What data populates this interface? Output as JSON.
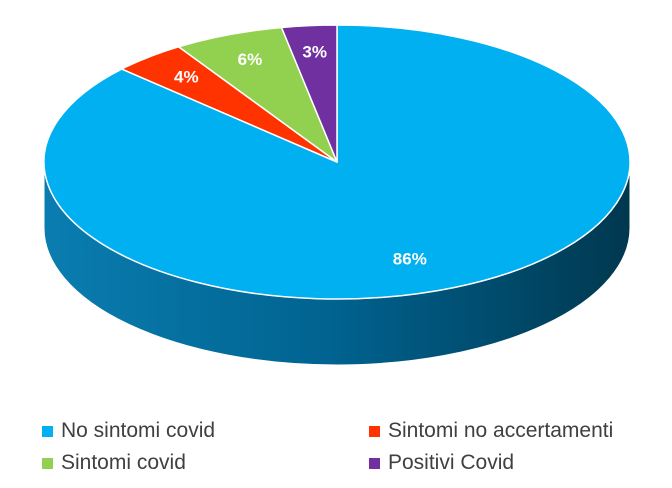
{
  "chart_data": {
    "type": "pie",
    "categories": [
      "No sintomi covid",
      "Sintomi no accertamenti",
      "Sintomi covid",
      "Positivi Covid"
    ],
    "values": [
      86,
      4,
      6,
      3
    ],
    "data_labels": [
      "86%",
      "4%",
      "6%",
      "3%"
    ],
    "colors": [
      "#00B0F0",
      "#FF3300",
      "#92D050",
      "#7030A0"
    ],
    "legend_position": "bottom",
    "style": "3d"
  },
  "legend": {
    "items": [
      {
        "label": "No sintomi covid",
        "color": "#00B0F0"
      },
      {
        "label": "Sintomi no accertamenti",
        "color": "#FF3300"
      },
      {
        "label": "Sintomi covid",
        "color": "#92D050"
      },
      {
        "label": "Positivi Covid",
        "color": "#7030A0"
      }
    ]
  }
}
